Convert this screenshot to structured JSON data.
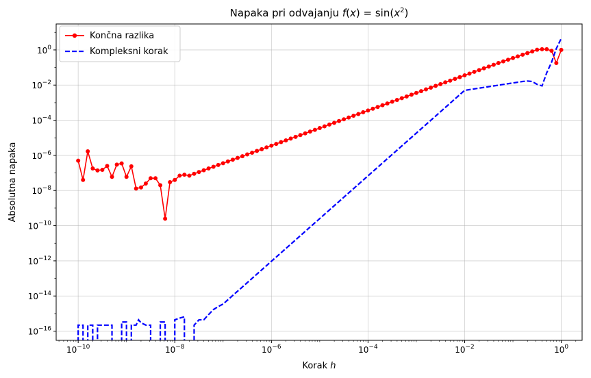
{
  "chart_data": {
    "type": "line",
    "title": "Napaka pri odvajanju f(x) = sin(x²)",
    "title_parts": {
      "prefix": "Napaka pri odvajanju ",
      "fx": "f",
      "mid1": "(",
      "x1": "x",
      "mid2": ") = sin(",
      "x2": "x",
      "sup": "2",
      "end": ")"
    },
    "xlabel": "Korak h",
    "xlabel_parts": {
      "text": "Korak ",
      "var": "h"
    },
    "ylabel": "Absolutna napaka",
    "xscale": "log",
    "yscale": "log",
    "xlim": [
      3.5e-11,
      2.7
    ],
    "ylim": [
      3e-17,
      30
    ],
    "grid": true,
    "legend_position": "top-left",
    "x_ticks": [
      {
        "base": "10",
        "exp": "−10"
      },
      {
        "base": "10",
        "exp": "−8"
      },
      {
        "base": "10",
        "exp": "−6"
      },
      {
        "base": "10",
        "exp": "−4"
      },
      {
        "base": "10",
        "exp": "−2"
      },
      {
        "base": "10",
        "exp": "0"
      }
    ],
    "y_ticks": [
      {
        "base": "10",
        "exp": "−16"
      },
      {
        "base": "10",
        "exp": "−14"
      },
      {
        "base": "10",
        "exp": "−12"
      },
      {
        "base": "10",
        "exp": "−10"
      },
      {
        "base": "10",
        "exp": "−8"
      },
      {
        "base": "10",
        "exp": "−6"
      },
      {
        "base": "10",
        "exp": "−4"
      },
      {
        "base": "10",
        "exp": "−2"
      },
      {
        "base": "10",
        "exp": "0"
      }
    ],
    "series": [
      {
        "name": "Končna razlika",
        "color": "#ff0000",
        "style": "solid",
        "marker": "circle",
        "x": [
          1e-10,
          1.26e-10,
          1.58e-10,
          2e-10,
          2.51e-10,
          3.16e-10,
          3.98e-10,
          5.01e-10,
          6.31e-10,
          7.94e-10,
          1e-09,
          1.26e-09,
          1.58e-09,
          2e-09,
          2.51e-09,
          3.16e-09,
          3.98e-09,
          5.01e-09,
          6.31e-09,
          7.94e-09,
          1e-08,
          1.26e-08,
          1.58e-08,
          2e-08,
          2.51e-08
        ],
        "y": [
          5e-07,
          4e-08,
          1.7e-06,
          1.8e-07,
          1.4e-07,
          1.5e-07,
          2.5e-07,
          6e-08,
          3e-07,
          3.5e-07,
          6e-08,
          2.4e-07,
          1.3e-08,
          1.5e-08,
          2.5e-08,
          5e-08,
          5e-08,
          2e-08,
          2.5e-10,
          3e-08,
          4e-08,
          7e-08,
          8e-08,
          7e-08,
          9e-08
        ],
        "trend": [
          {
            "x": 2.51e-08,
            "y": 9e-08
          },
          {
            "x": 1,
            "y": 1.3
          },
          {
            "x": 0.4,
            "y": 1.1
          },
          {
            "x": 0.5,
            "y": 1.1
          },
          {
            "x": 0.63,
            "y": 0.9
          },
          {
            "x": 0.79,
            "y": 0.18
          },
          {
            "x": 1.0,
            "y": 1.0
          }
        ]
      },
      {
        "name": "Kompleksni korak",
        "color": "#0000ff",
        "style": "dashed",
        "points": [
          [
            1e-10,
            1e-17
          ],
          [
            1e-10,
            2.2e-16
          ],
          [
            1.26e-10,
            2.2e-16
          ],
          [
            1.26e-10,
            1e-17
          ],
          [
            1.58e-10,
            1e-17
          ],
          [
            1.58e-10,
            2.2e-16
          ],
          [
            2e-10,
            2.2e-16
          ],
          [
            2e-10,
            1e-17
          ],
          [
            2.51e-10,
            1e-17
          ],
          [
            2.51e-10,
            2.2e-16
          ],
          [
            3.16e-10,
            2.2e-16
          ],
          [
            5.01e-10,
            2.2e-16
          ],
          [
            5.01e-10,
            1e-17
          ],
          [
            6.31e-10,
            1e-17
          ],
          [
            7.94e-10,
            1e-17
          ],
          [
            7.94e-10,
            3.3e-16
          ],
          [
            1e-09,
            3.3e-16
          ],
          [
            1e-09,
            1e-17
          ],
          [
            1.26e-09,
            1e-17
          ],
          [
            1.26e-09,
            2.2e-16
          ],
          [
            1.58e-09,
            2.2e-16
          ],
          [
            1.78e-09,
            4.4e-16
          ],
          [
            2e-09,
            3e-16
          ],
          [
            2.51e-09,
            2.2e-16
          ],
          [
            3.16e-09,
            2.2e-16
          ],
          [
            3.16e-09,
            1e-17
          ],
          [
            3.98e-09,
            1e-17
          ],
          [
            5.01e-09,
            1e-17
          ],
          [
            5.01e-09,
            3.3e-16
          ],
          [
            6.31e-09,
            3.3e-16
          ],
          [
            6.31e-09,
            1e-17
          ],
          [
            7.94e-09,
            1e-17
          ],
          [
            1e-08,
            1e-17
          ],
          [
            1e-08,
            4.4e-16
          ],
          [
            1.26e-08,
            5.5e-16
          ],
          [
            1.58e-08,
            6.6e-16
          ],
          [
            1.58e-08,
            1e-17
          ],
          [
            2e-08,
            1e-17
          ],
          [
            2.51e-08,
            1e-17
          ],
          [
            2.51e-08,
            2.2e-16
          ],
          [
            3.16e-08,
            4.4e-16
          ],
          [
            3.98e-08,
            4.4e-16
          ],
          [
            5.01e-08,
            8.8e-16
          ],
          [
            6.31e-08,
            1.7e-15
          ],
          [
            7.94e-08,
            2.5e-15
          ],
          [
            1e-07,
            3.5e-15
          ],
          [
            0.01,
            0.005
          ],
          [
            0.158,
            0.016
          ],
          [
            0.2,
            0.017
          ],
          [
            0.25,
            0.016
          ],
          [
            0.316,
            0.011
          ],
          [
            0.4,
            0.009
          ],
          [
            0.5,
            0.05
          ],
          [
            0.63,
            0.2
          ],
          [
            0.79,
            1.2
          ],
          [
            1.0,
            4.5
          ]
        ]
      }
    ]
  }
}
